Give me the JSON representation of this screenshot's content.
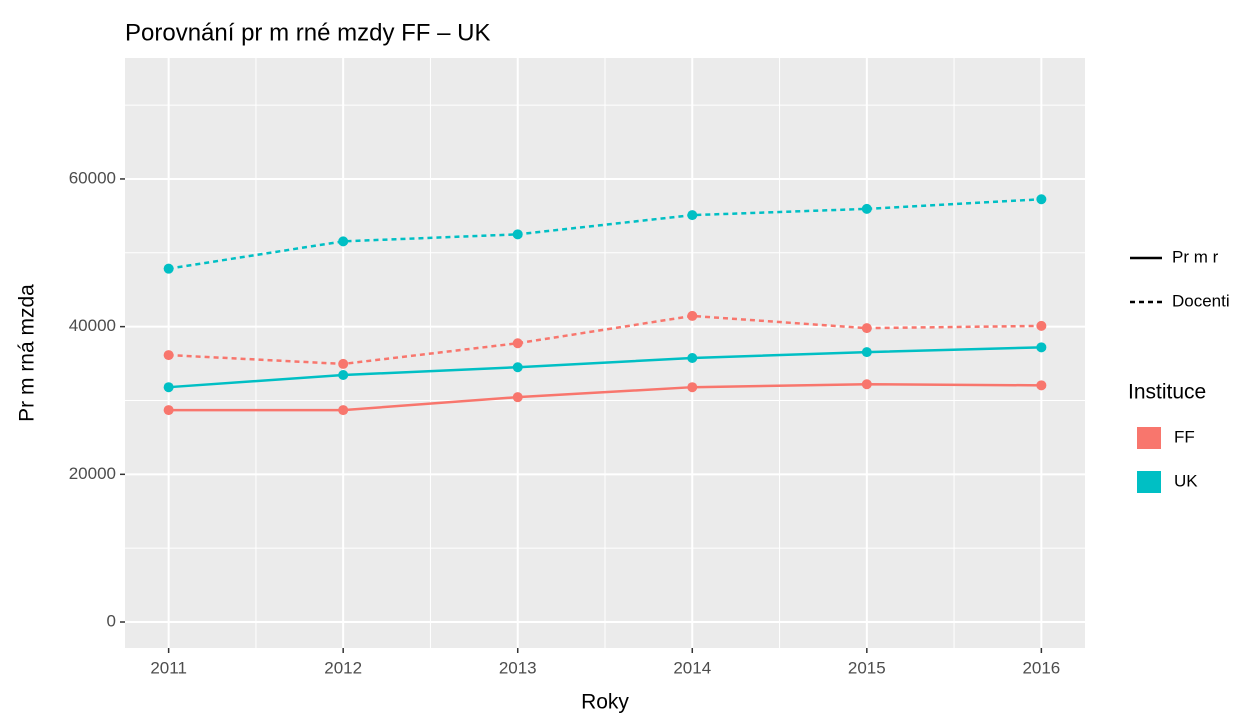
{
  "chart_data": {
    "type": "line",
    "title": "Porovnání pr m rné mzdy FF – UK",
    "x_label": "Roky",
    "y_label": "Pr m rná mzda",
    "x": [
      2011,
      2012,
      2013,
      2014,
      2015,
      2016
    ],
    "xlim": [
      2010.75,
      2016.25
    ],
    "xticks": [
      2011,
      2012,
      2013,
      2014,
      2015,
      2016
    ],
    "xminorticks": [
      2011.5,
      2012.5,
      2013.5,
      2014.5,
      2015.5
    ],
    "ylim": [
      -3520,
      76380
    ],
    "yticks": [
      0,
      20000,
      40000,
      60000
    ],
    "yminorticks": [
      10000,
      30000,
      50000,
      70000
    ],
    "grid": true,
    "series": [
      {
        "color": "#f8766d",
        "dash": "solid",
        "values": [
          28700,
          28700,
          30450,
          31800,
          32200,
          32050
        ]
      },
      {
        "color": "#00bfc4",
        "dash": "solid",
        "values": [
          31800,
          33450,
          34500,
          35750,
          36550,
          37200
        ]
      },
      {
        "color": "#f8766d",
        "dash": "dashed",
        "values": [
          36150,
          34950,
          37750,
          41450,
          39800,
          40100
        ]
      },
      {
        "color": "#00bfc4",
        "dash": "dashed",
        "values": [
          47850,
          51550,
          52500,
          55100,
          55950,
          57250
        ]
      }
    ],
    "legend": {
      "linetype": [
        {
          "label": "Pr m r",
          "dash": "solid"
        },
        {
          "label": "Docenti",
          "dash": "dashed"
        }
      ],
      "color_title": "Instituce",
      "color": [
        {
          "label": "FF",
          "color": "#f8766d"
        },
        {
          "label": "UK",
          "color": "#00bfc4"
        }
      ]
    }
  }
}
